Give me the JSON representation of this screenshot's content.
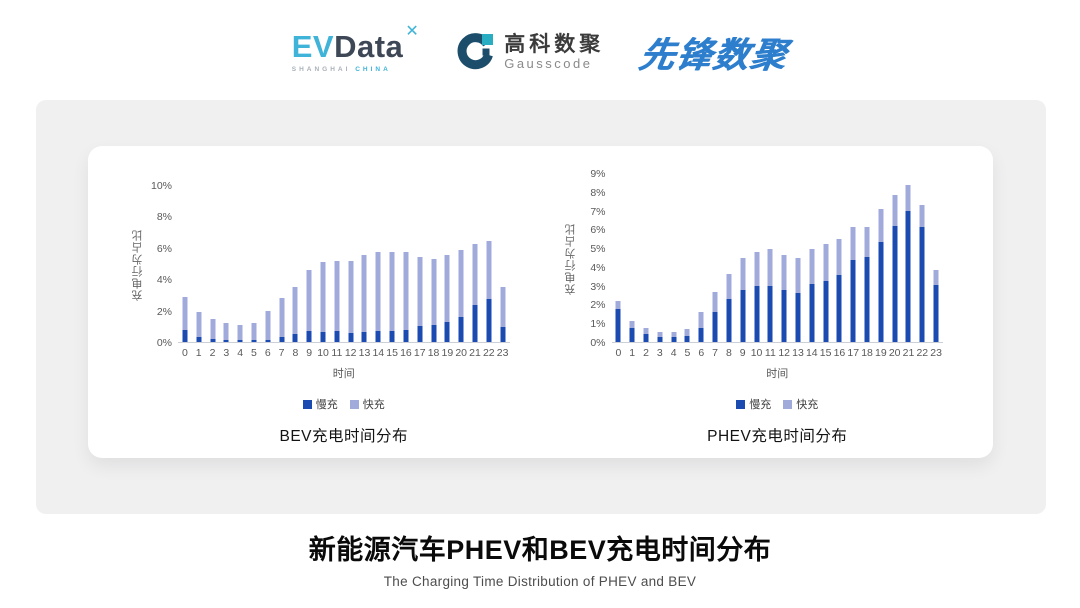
{
  "header": {
    "evdata": {
      "ev": "EV",
      "data": "Data",
      "mark": "✕",
      "sub_left": "SHANGHAI",
      "sub_right": "CHINA"
    },
    "gausscode": {
      "name_cn": "高科数聚",
      "name_en": "Gausscode"
    },
    "pioneer": {
      "text": "先锋数聚"
    }
  },
  "colors": {
    "slow_blue": "#1b4ab0",
    "fast_lavender": "#a0abdb",
    "card_gray": "#f0f0f1",
    "evdata_cyan": "#3fb4d8",
    "pioneer_blue": "#2d7ecd"
  },
  "chart_data": [
    {
      "type": "bar",
      "stacked": true,
      "title": "BEV充电时间分布",
      "ylabel": "充电行为占比",
      "xlabel": "时间",
      "ylim": [
        0,
        10
      ],
      "yticks": [
        "10%",
        "8%",
        "6%",
        "4%",
        "2%",
        "0%"
      ],
      "grid": false,
      "legend_position": "bottom",
      "categories": [
        "0",
        "1",
        "2",
        "3",
        "4",
        "5",
        "6",
        "7",
        "8",
        "9",
        "10",
        "11",
        "12",
        "13",
        "14",
        "15",
        "16",
        "17",
        "18",
        "19",
        "20",
        "21",
        "22",
        "23"
      ],
      "series": [
        {
          "name": "慢充",
          "color": "#1b4ab0",
          "values": [
            0.75,
            0.35,
            0.2,
            0.1,
            0.1,
            0.1,
            0.15,
            0.35,
            0.5,
            0.7,
            0.65,
            0.7,
            0.6,
            0.65,
            0.7,
            0.7,
            0.8,
            1.0,
            1.1,
            1.3,
            1.6,
            2.4,
            2.75,
            0.95
          ]
        },
        {
          "name": "快充",
          "color": "#a0abdb",
          "values": [
            2.15,
            1.55,
            1.3,
            1.1,
            1.0,
            1.1,
            1.85,
            2.45,
            3.05,
            3.9,
            4.5,
            4.5,
            4.6,
            4.95,
            5.1,
            5.1,
            5.0,
            4.45,
            4.2,
            4.25,
            4.3,
            3.9,
            3.75,
            2.6
          ]
        }
      ]
    },
    {
      "type": "bar",
      "stacked": true,
      "title": "PHEV充电时间分布",
      "ylabel": "充电行为占比",
      "xlabel": "时间",
      "ylim": [
        0,
        9
      ],
      "yticks": [
        "9%",
        "8%",
        "7%",
        "6%",
        "5%",
        "4%",
        "3%",
        "2%",
        "1%",
        "0%"
      ],
      "grid": false,
      "legend_position": "bottom",
      "categories": [
        "0",
        "1",
        "2",
        "3",
        "4",
        "5",
        "6",
        "7",
        "8",
        "9",
        "10",
        "11",
        "12",
        "13",
        "14",
        "15",
        "16",
        "17",
        "18",
        "19",
        "20",
        "21",
        "22",
        "23"
      ],
      "series": [
        {
          "name": "慢充",
          "color": "#1b4ab0",
          "values": [
            1.75,
            0.75,
            0.45,
            0.25,
            0.25,
            0.3,
            0.75,
            1.6,
            2.3,
            2.8,
            3.0,
            3.0,
            2.8,
            2.65,
            3.1,
            3.25,
            3.6,
            4.4,
            4.55,
            5.35,
            6.2,
            7.0,
            6.15,
            3.05
          ]
        },
        {
          "name": "快充",
          "color": "#a0abdb",
          "values": [
            0.45,
            0.4,
            0.3,
            0.3,
            0.3,
            0.4,
            0.85,
            1.1,
            1.35,
            1.7,
            1.8,
            2.0,
            1.85,
            1.85,
            1.9,
            2.0,
            1.9,
            1.75,
            1.6,
            1.75,
            1.7,
            1.4,
            1.2,
            0.8
          ]
        }
      ]
    }
  ],
  "footer": {
    "title": "新能源汽车PHEV和BEV充电时间分布",
    "subtitle": "The Charging Time Distribution of PHEV and BEV"
  }
}
